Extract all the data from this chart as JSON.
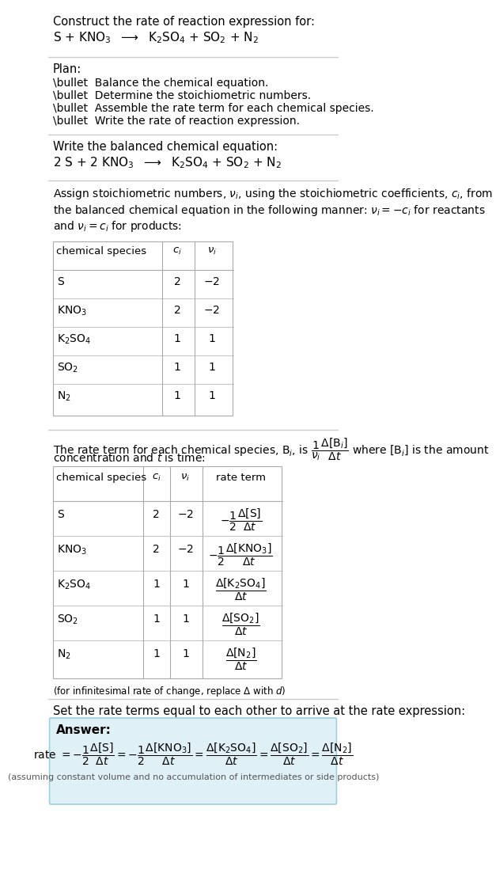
{
  "title_line1": "Construct the rate of reaction expression for:",
  "title_line2_latex": "S + KNO$_3$  $\\longrightarrow$  K$_2$SO$_4$ + SO$_2$ + N$_2$",
  "plan_header": "Plan:",
  "plan_items": [
    "\\bullet  Balance the chemical equation.",
    "\\bullet  Determine the stoichiometric numbers.",
    "\\bullet  Assemble the rate term for each chemical species.",
    "\\bullet  Write the rate of reaction expression."
  ],
  "balanced_header": "Write the balanced chemical equation:",
  "balanced_eq": "2 S + 2 KNO$_3$  $\\longrightarrow$  K$_2$SO$_4$ + SO$_2$ + N$_2$",
  "assign_text": "Assign stoichiometric numbers, $\\nu_i$, using the stoichiometric coefficients, $c_i$, from\nthe balanced chemical equation in the following manner: $\\nu_i = -c_i$ for reactants\nand $\\nu_i = c_i$ for products:",
  "table1_headers": [
    "chemical species",
    "$c_i$",
    "$\\nu_i$"
  ],
  "table1_rows": [
    [
      "S",
      "2",
      "$-2$"
    ],
    [
      "KNO$_3$",
      "2",
      "$-2$"
    ],
    [
      "K$_2$SO$_4$",
      "1",
      "1"
    ],
    [
      "SO$_2$",
      "1",
      "1"
    ],
    [
      "N$_2$",
      "1",
      "1"
    ]
  ],
  "rate_term_text1": "The rate term for each chemical species, B$_i$, is $\\dfrac{1}{\\nu_i}\\dfrac{\\Delta[\\mathrm{B}_i]}{\\Delta t}$ where [B$_i$] is the amount",
  "rate_term_text2": "concentration and $t$ is time:",
  "table2_headers": [
    "chemical species",
    "$c_i$",
    "$\\nu_i$",
    "rate term"
  ],
  "table2_rows": [
    [
      "S",
      "2",
      "$-2$",
      "$-\\dfrac{1}{2}\\dfrac{\\Delta[\\mathrm{S}]}{\\Delta t}$"
    ],
    [
      "KNO$_3$",
      "2",
      "$-2$",
      "$-\\dfrac{1}{2}\\dfrac{\\Delta[\\mathrm{KNO_3}]}{\\Delta t}$"
    ],
    [
      "K$_2$SO$_4$",
      "1",
      "1",
      "$\\dfrac{\\Delta[\\mathrm{K_2SO_4}]}{\\Delta t}$"
    ],
    [
      "SO$_2$",
      "1",
      "1",
      "$\\dfrac{\\Delta[\\mathrm{SO_2}]}{\\Delta t}$"
    ],
    [
      "N$_2$",
      "1",
      "1",
      "$\\dfrac{\\Delta[\\mathrm{N_2}]}{\\Delta t}$"
    ]
  ],
  "infinitesimal_note": "(for infinitesimal rate of change, replace $\\Delta$ with $d$)",
  "set_rate_text": "Set the rate terms equal to each other to arrive at the rate expression:",
  "answer_label": "Answer:",
  "answer_box_color": "#dff0f7",
  "answer_box_border": "#9ecfdf",
  "rate_expression": "rate $= -\\dfrac{1}{2}\\dfrac{\\Delta[\\mathrm{S}]}{\\Delta t} = -\\dfrac{1}{2}\\dfrac{\\Delta[\\mathrm{KNO_3}]}{\\Delta t} = \\dfrac{\\Delta[\\mathrm{K_2SO_4}]}{\\Delta t} = \\dfrac{\\Delta[\\mathrm{SO_2}]}{\\Delta t} = \\dfrac{\\Delta[\\mathrm{N_2}]}{\\Delta t}$",
  "assuming_note": "(assuming constant volume and no accumulation of intermediates or side products)",
  "bg_color": "#ffffff",
  "text_color": "#000000",
  "table_border_color": "#aaaaaa",
  "separator_color": "#cccccc"
}
